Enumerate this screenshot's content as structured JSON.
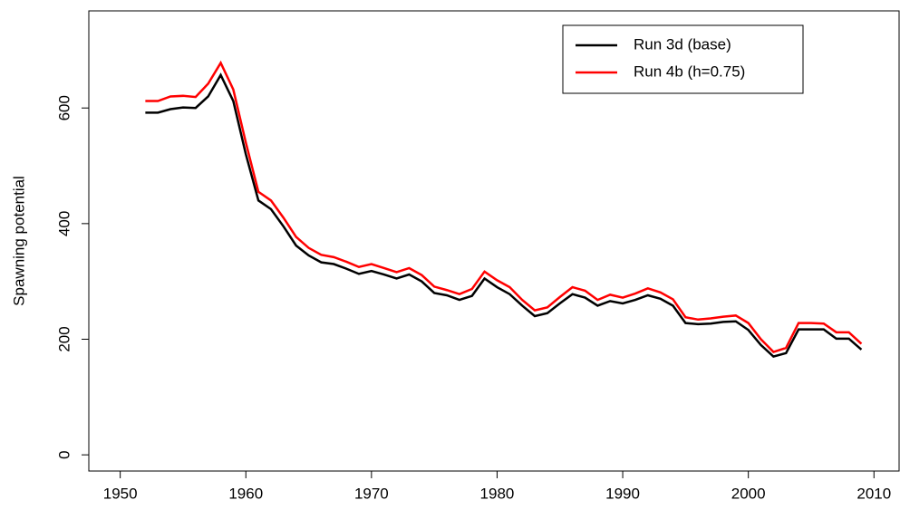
{
  "chart_data": {
    "type": "line",
    "ylabel": "Spawning potential",
    "x": [
      1952,
      1953,
      1954,
      1955,
      1956,
      1957,
      1958,
      1959,
      1960,
      1961,
      1962,
      1963,
      1964,
      1965,
      1966,
      1967,
      1968,
      1969,
      1970,
      1971,
      1972,
      1973,
      1974,
      1975,
      1976,
      1977,
      1978,
      1979,
      1980,
      1981,
      1982,
      1983,
      1984,
      1985,
      1986,
      1987,
      1988,
      1989,
      1990,
      1991,
      1992,
      1993,
      1994,
      1995,
      1996,
      1997,
      1998,
      1999,
      2000,
      2001,
      2002,
      2003,
      2004,
      2005,
      2006,
      2007,
      2008,
      2009
    ],
    "series": [
      {
        "name": "Run 3d (base)",
        "color": "#000000",
        "values": [
          592,
          592,
          598,
          601,
          600,
          620,
          657,
          612,
          520,
          440,
          425,
          395,
          362,
          345,
          333,
          330,
          322,
          313,
          318,
          312,
          305,
          312,
          300,
          280,
          276,
          268,
          275,
          305,
          290,
          278,
          258,
          240,
          245,
          262,
          278,
          272,
          258,
          266,
          262,
          268,
          276,
          270,
          258,
          228,
          226,
          227,
          230,
          231,
          216,
          190,
          170,
          176,
          217,
          217,
          217,
          201,
          201,
          182
        ]
      },
      {
        "name": "Run 4b (h=0.75)",
        "color": "#ff0000",
        "values": [
          612,
          612,
          620,
          621,
          619,
          642,
          678,
          632,
          540,
          455,
          440,
          410,
          377,
          358,
          346,
          342,
          334,
          325,
          330,
          323,
          316,
          323,
          311,
          291,
          285,
          278,
          287,
          317,
          302,
          290,
          268,
          250,
          255,
          273,
          290,
          284,
          268,
          277,
          272,
          279,
          288,
          281,
          269,
          238,
          234,
          236,
          239,
          241,
          228,
          200,
          178,
          185,
          228,
          228,
          227,
          212,
          212,
          192
        ]
      }
    ],
    "xlim": [
      1947.5,
      2012
    ],
    "xticks": [
      1950,
      1960,
      1970,
      1980,
      1990,
      2000,
      2010
    ],
    "ylim": [
      -28,
      768
    ],
    "yticks": [
      0,
      200,
      400,
      600
    ],
    "legend": "top-right"
  }
}
